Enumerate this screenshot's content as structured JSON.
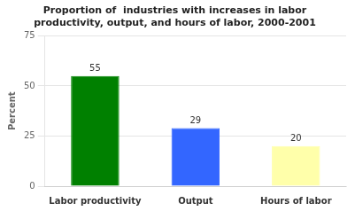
{
  "chart_data": {
    "type": "bar",
    "title": [
      "Proportion of  industries with increases in labor",
      "productivity, output, and hours of labor, 2000-2001"
    ],
    "y_label": "Percent",
    "categories": [
      "Labor productivity",
      "Output",
      "Hours of labor"
    ],
    "values": [
      55,
      29,
      20
    ],
    "colors": [
      "#008000",
      "#3366FF",
      "#FFFFAA"
    ],
    "ylim": [
      0,
      75
    ],
    "yticks": [
      0,
      25,
      50,
      75
    ],
    "grid": true,
    "data_labels": true
  }
}
